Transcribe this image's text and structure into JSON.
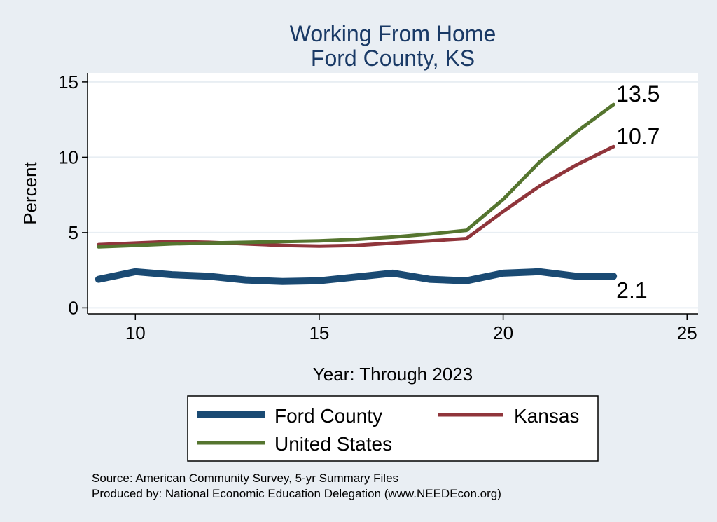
{
  "chart_data": {
    "type": "line",
    "title": "Working From Home",
    "subtitle": "Ford County, KS",
    "xlabel": "Year: Through 2023",
    "ylabel": "Percent",
    "xlim": [
      8.7,
      25.3
    ],
    "ylim": [
      -0.4,
      15.6
    ],
    "xticks": [
      10,
      15,
      20,
      25
    ],
    "yticks": [
      0,
      5,
      10,
      15
    ],
    "grid": true,
    "legend_position": "bottom",
    "x": [
      9,
      10,
      11,
      12,
      13,
      14,
      15,
      16,
      17,
      18,
      19,
      20,
      21,
      22,
      23
    ],
    "series": [
      {
        "name": "Ford County",
        "color": "#1a4a73",
        "end_label": "2.1",
        "values": [
          1.9,
          2.4,
          2.2,
          2.1,
          1.85,
          1.75,
          1.8,
          2.05,
          2.3,
          1.9,
          1.8,
          2.3,
          2.4,
          2.1,
          2.1
        ]
      },
      {
        "name": "Kansas",
        "color": "#90353b",
        "end_label": "10.7",
        "values": [
          4.2,
          4.3,
          4.4,
          4.35,
          4.25,
          4.15,
          4.1,
          4.15,
          4.3,
          4.45,
          4.6,
          6.4,
          8.1,
          9.5,
          10.7
        ]
      },
      {
        "name": "United States",
        "color": "#55752f",
        "end_label": "13.5",
        "values": [
          4.05,
          4.15,
          4.25,
          4.3,
          4.35,
          4.4,
          4.45,
          4.55,
          4.7,
          4.9,
          5.15,
          7.2,
          9.7,
          11.7,
          13.5
        ]
      }
    ]
  },
  "notes": {
    "source": "Source: American Community Survey, 5-yr Summary Files",
    "producer": "Produced by: National Economic Education Delegation (www.NEEDEcon.org)"
  }
}
